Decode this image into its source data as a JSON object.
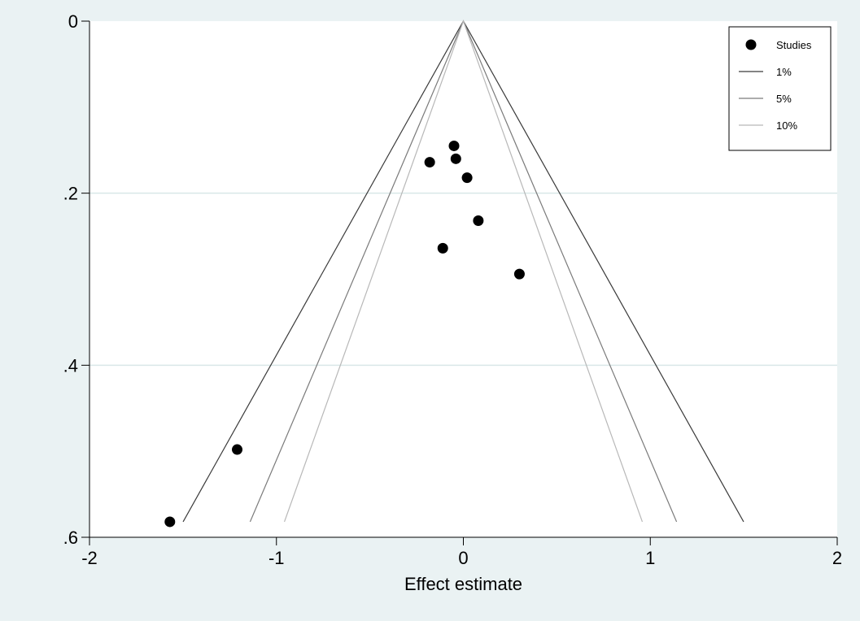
{
  "chart_data": {
    "type": "scatter",
    "xlabel": "Effect estimate",
    "ylabel": "",
    "xlim": [
      -2,
      2
    ],
    "ylim": [
      0,
      0.6
    ],
    "y_reversed": true,
    "grid": "horizontal",
    "legend_position": "top-right",
    "x_ticks": [
      {
        "value": -2,
        "label": "-2"
      },
      {
        "value": -1,
        "label": "-1"
      },
      {
        "value": 0,
        "label": "0"
      },
      {
        "value": 1,
        "label": "1"
      },
      {
        "value": 2,
        "label": "2"
      }
    ],
    "y_ticks": [
      {
        "value": 0,
        "label": "0"
      },
      {
        "value": 0.2,
        "label": ".2"
      },
      {
        "value": 0.4,
        "label": ".4"
      },
      {
        "value": 0.6,
        "label": ".6"
      }
    ],
    "points": [
      {
        "x": -0.05,
        "y": 0.145
      },
      {
        "x": -0.04,
        "y": 0.16
      },
      {
        "x": -0.18,
        "y": 0.164
      },
      {
        "x": 0.02,
        "y": 0.182
      },
      {
        "x": 0.08,
        "y": 0.232
      },
      {
        "x": -0.11,
        "y": 0.264
      },
      {
        "x": 0.3,
        "y": 0.294
      },
      {
        "x": -1.21,
        "y": 0.498
      },
      {
        "x": -1.57,
        "y": 0.582
      }
    ],
    "contours": [
      {
        "name": "1%",
        "z": 2.576,
        "color": "#3a3a3a"
      },
      {
        "name": "5%",
        "z": 1.96,
        "color": "#7a7a7a"
      },
      {
        "name": "10%",
        "z": 1.645,
        "color": "#b8b8b8"
      }
    ],
    "contour_ymax": 0.582,
    "legend": [
      {
        "label": "Studies",
        "kind": "marker",
        "color": "#000000"
      },
      {
        "label": "1%",
        "kind": "line",
        "color": "#3a3a3a"
      },
      {
        "label": "5%",
        "kind": "line",
        "color": "#7a7a7a"
      },
      {
        "label": "10%",
        "kind": "line",
        "color": "#b8b8b8"
      }
    ],
    "colors": {
      "background": "#eaf2f3",
      "plot_area": "#ffffff",
      "gridline": "#d9e7e8"
    }
  }
}
